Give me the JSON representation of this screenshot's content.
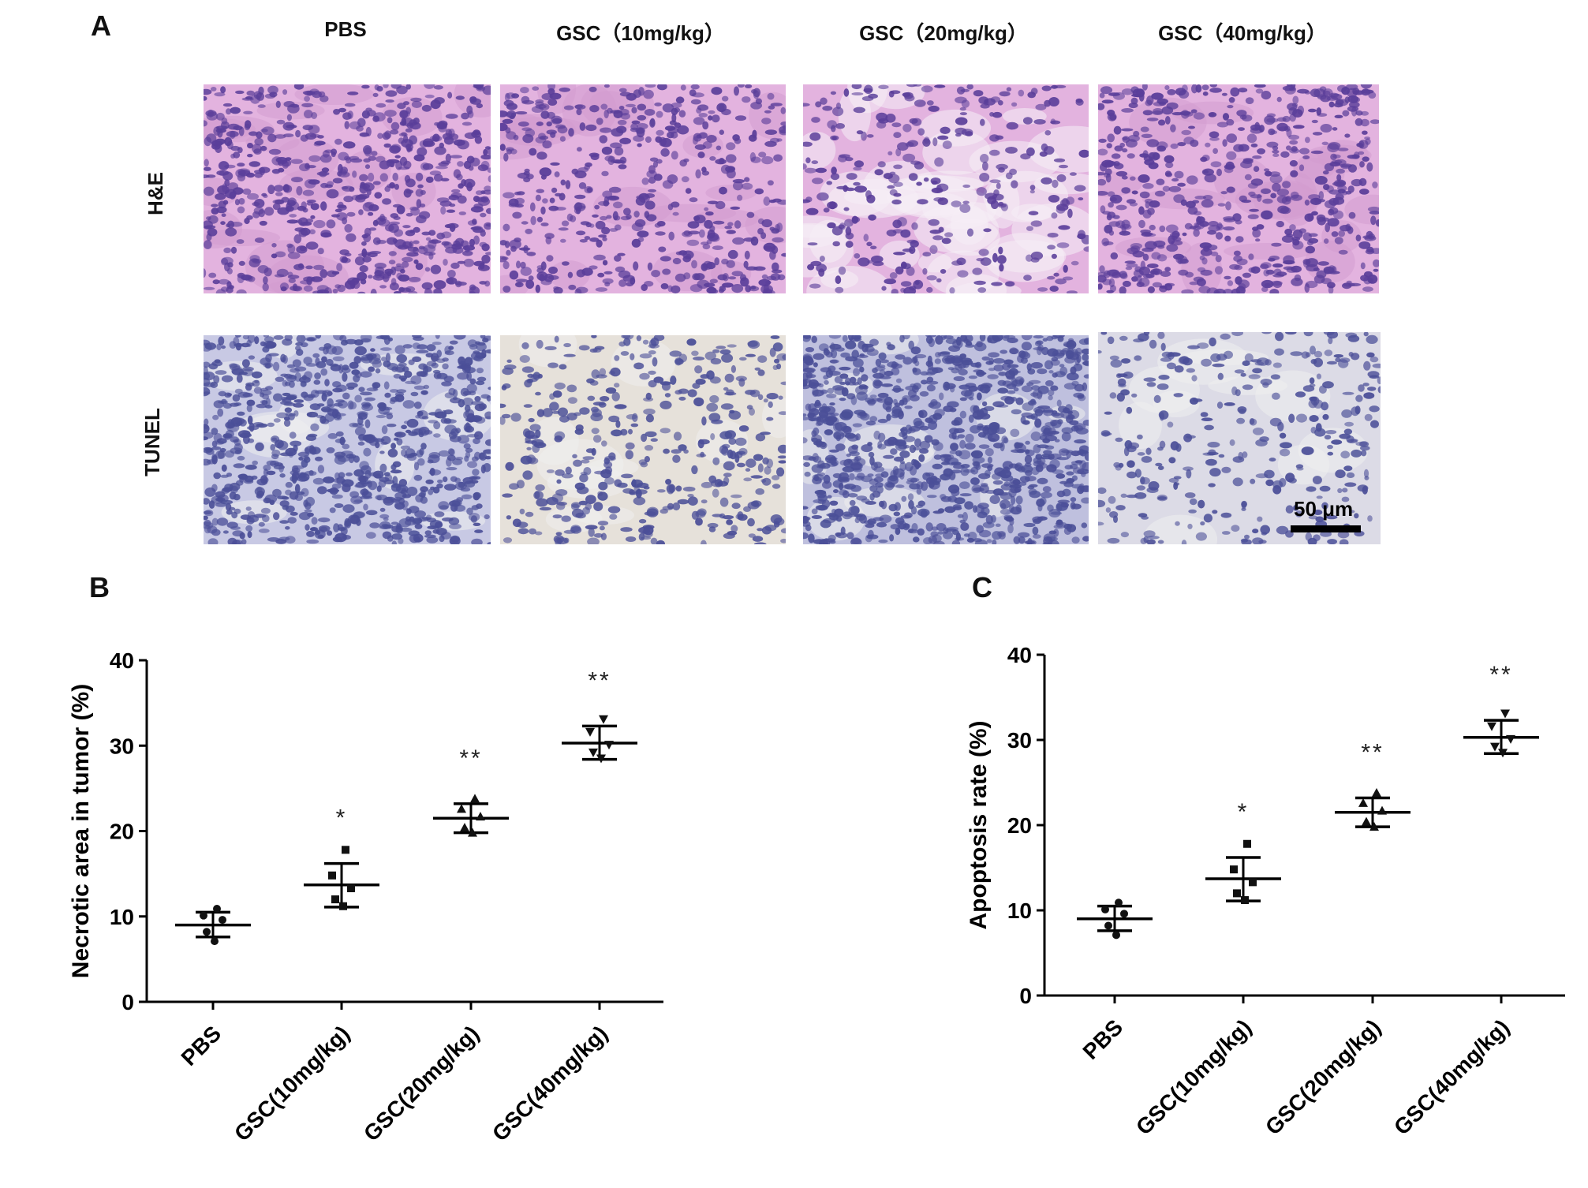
{
  "panelA": {
    "letter": "A",
    "columns": [
      "PBS",
      "GSC（10mg/kg）",
      "GSC（20mg/kg）",
      "GSC（40mg/kg）"
    ],
    "rows": [
      "H&E",
      "TUNEL"
    ],
    "scale_bar_label": "50 μm",
    "colors": {
      "he_background": "#e3b3df",
      "he_nucleus": "#5a3e9a",
      "tunel_background": "#c8c9e4",
      "tunel_nucleus": "#4b4f98",
      "tunel_light_background": "#e6e1da"
    }
  },
  "panelB": {
    "letter": "B"
  },
  "panelC": {
    "letter": "C"
  },
  "chart_data": [
    {
      "type": "scatter",
      "ylabel": "Necrotic area in tumor (%)",
      "ylim": [
        0,
        40
      ],
      "yticks": [
        "0",
        "10",
        "20",
        "30",
        "40"
      ],
      "categories": [
        "PBS",
        "GSC(10mg/kg)",
        "GSC(20mg/kg)",
        "GSC(40mg/kg)"
      ],
      "mean": [
        9.0,
        13.7,
        21.5,
        30.3
      ],
      "sd_low": [
        7.6,
        11.1,
        19.8,
        28.4
      ],
      "sd_high": [
        10.5,
        16.2,
        23.2,
        32.3
      ],
      "points": [
        [
          10.9,
          10.1,
          9.6,
          8.2,
          7.1
        ],
        [
          17.8,
          14.8,
          13.3,
          12.0,
          11.2
        ],
        [
          23.8,
          22.6,
          21.7,
          20.4,
          19.8
        ],
        [
          33.1,
          31.6,
          30.1,
          29.2,
          28.5
        ]
      ],
      "significance": [
        "",
        "*",
        "**",
        "**"
      ]
    },
    {
      "type": "scatter",
      "ylabel": "Apoptosis rate (%)",
      "ylim": [
        0,
        40
      ],
      "yticks": [
        "0",
        "10",
        "20",
        "30",
        "40"
      ],
      "categories": [
        "PBS",
        "GSC(10mg/kg)",
        "GSC(20mg/kg)",
        "GSC(40mg/kg)"
      ],
      "mean": [
        9.0,
        13.7,
        21.5,
        30.3
      ],
      "sd_low": [
        7.6,
        11.1,
        19.8,
        28.4
      ],
      "sd_high": [
        10.5,
        16.2,
        23.2,
        32.3
      ],
      "points": [
        [
          10.9,
          10.1,
          9.6,
          8.2,
          7.1
        ],
        [
          17.8,
          14.8,
          13.3,
          12.0,
          11.2
        ],
        [
          23.8,
          22.6,
          21.7,
          20.4,
          19.8
        ],
        [
          33.1,
          31.6,
          30.1,
          29.2,
          28.5
        ]
      ],
      "significance": [
        "",
        "*",
        "**",
        "**"
      ]
    }
  ]
}
